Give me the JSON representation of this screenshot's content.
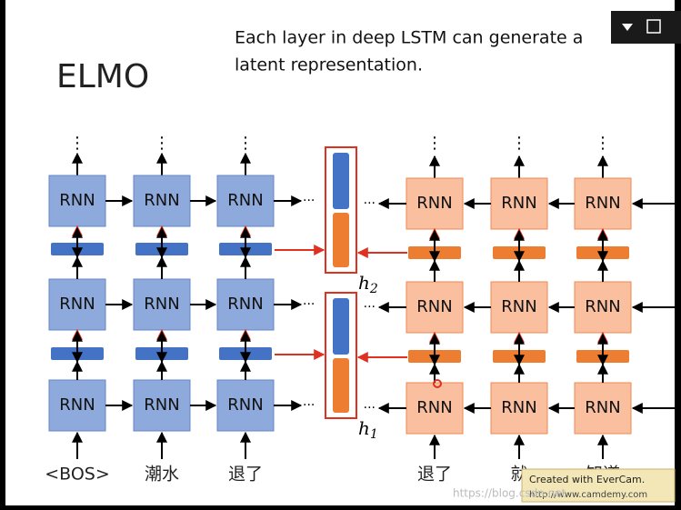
{
  "slide": {
    "title": "ELMO",
    "description": [
      "Each layer in deep LSTM can generate a",
      "latent representation."
    ],
    "cell_label": "RNN",
    "ellipsis": "⋮",
    "dots": "···",
    "inputs": [
      "<BOS>",
      "潮水",
      "退了",
      "退了",
      "就",
      "知道"
    ],
    "h_upper": {
      "base": "h",
      "sub": "2"
    },
    "h_lower": {
      "base": "h",
      "sub": "1"
    }
  },
  "watermark": {
    "line1": "Created with EverCam.",
    "line2": "http://www.camdemy.com",
    "blog": "https://blog.csdn.net"
  }
}
